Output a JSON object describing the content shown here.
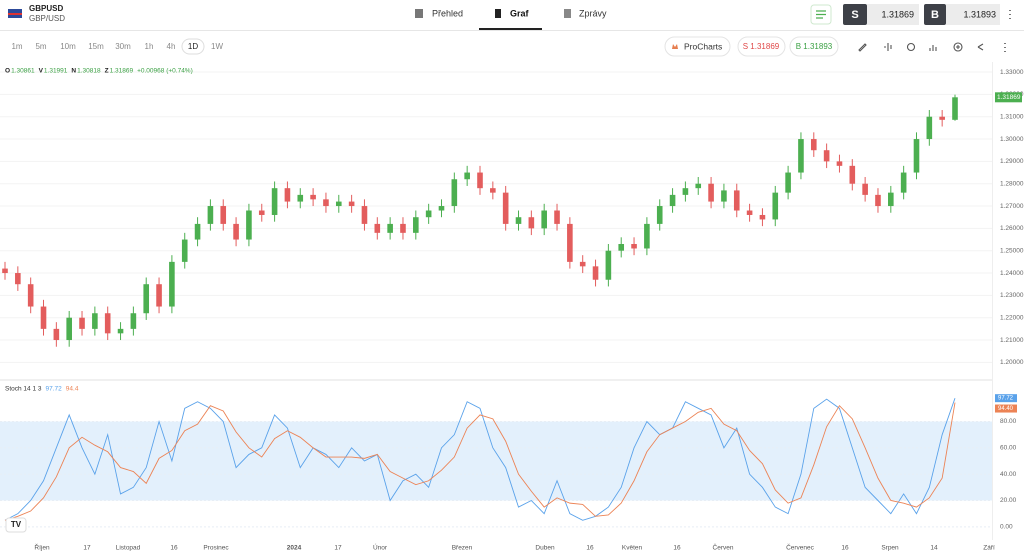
{
  "header": {
    "symbol": "GBPUSD",
    "pair": "GBP/USD",
    "tabs": [
      "Přehled",
      "Graf",
      "Zprávy"
    ],
    "sell_label": "S",
    "sell_price": "1.31869",
    "buy_label": "B",
    "buy_price": "1.31893"
  },
  "toolbar": {
    "timeframes": [
      "1m",
      "5m",
      "10m",
      "15m",
      "30m",
      "1h",
      "4h",
      "1D",
      "1W"
    ],
    "procharts": "ProCharts",
    "sell": "S 1.31869",
    "buy": "B 1.31893"
  },
  "chart_data": {
    "type": "candlestick",
    "ohlc_labels": [
      "O",
      "V",
      "N",
      "Z"
    ],
    "change": "+0.00968 (+0.74%)",
    "up_color": "#4caf50",
    "down_color": "#e35d5d",
    "grid": true,
    "open": [
      1.242,
      1.24,
      1.235,
      1.225,
      1.215,
      1.21,
      1.22,
      1.215,
      1.222,
      1.213,
      1.215,
      1.222,
      1.235,
      1.225,
      1.245,
      1.255,
      1.262,
      1.27,
      1.262,
      1.255,
      1.268,
      1.266,
      1.278,
      1.272,
      1.275,
      1.273,
      1.27,
      1.272,
      1.27,
      1.262,
      1.258,
      1.262,
      1.258,
      1.265,
      1.268,
      1.27,
      1.282,
      1.285,
      1.278,
      1.276,
      1.262,
      1.265,
      1.26,
      1.268,
      1.262,
      1.245,
      1.243,
      1.237,
      1.25,
      1.253,
      1.251,
      1.262,
      1.27,
      1.275,
      1.278,
      1.28,
      1.272,
      1.277,
      1.268,
      1.266,
      1.264,
      1.276,
      1.285,
      1.3,
      1.295,
      1.29,
      1.288,
      1.28,
      1.275,
      1.27,
      1.276,
      1.285,
      1.3,
      1.31,
      1.30861
    ],
    "high": [
      1.245,
      1.243,
      1.238,
      1.228,
      1.218,
      1.223,
      1.223,
      1.225,
      1.225,
      1.218,
      1.225,
      1.238,
      1.238,
      1.248,
      1.258,
      1.265,
      1.273,
      1.273,
      1.265,
      1.271,
      1.271,
      1.281,
      1.281,
      1.278,
      1.278,
      1.276,
      1.275,
      1.275,
      1.273,
      1.265,
      1.265,
      1.265,
      1.268,
      1.271,
      1.273,
      1.285,
      1.288,
      1.288,
      1.281,
      1.279,
      1.268,
      1.268,
      1.271,
      1.271,
      1.265,
      1.248,
      1.246,
      1.253,
      1.256,
      1.256,
      1.265,
      1.273,
      1.278,
      1.281,
      1.283,
      1.283,
      1.28,
      1.28,
      1.271,
      1.269,
      1.279,
      1.288,
      1.303,
      1.303,
      1.298,
      1.293,
      1.291,
      1.283,
      1.278,
      1.279,
      1.288,
      1.303,
      1.313,
      1.313,
      1.31991
    ],
    "low": [
      1.237,
      1.232,
      1.222,
      1.212,
      1.207,
      1.207,
      1.212,
      1.212,
      1.21,
      1.21,
      1.212,
      1.219,
      1.222,
      1.222,
      1.242,
      1.252,
      1.259,
      1.259,
      1.252,
      1.252,
      1.263,
      1.263,
      1.269,
      1.269,
      1.27,
      1.267,
      1.267,
      1.267,
      1.259,
      1.255,
      1.255,
      1.255,
      1.255,
      1.262,
      1.265,
      1.267,
      1.279,
      1.275,
      1.273,
      1.259,
      1.259,
      1.257,
      1.257,
      1.259,
      1.242,
      1.24,
      1.234,
      1.234,
      1.247,
      1.248,
      1.248,
      1.259,
      1.267,
      1.272,
      1.275,
      1.269,
      1.269,
      1.265,
      1.263,
      1.261,
      1.261,
      1.273,
      1.282,
      1.292,
      1.287,
      1.285,
      1.277,
      1.272,
      1.267,
      1.267,
      1.273,
      1.282,
      1.297,
      1.30561,
      1.30818
    ],
    "close": [
      1.24,
      1.235,
      1.225,
      1.215,
      1.21,
      1.22,
      1.215,
      1.222,
      1.213,
      1.215,
      1.222,
      1.235,
      1.225,
      1.245,
      1.255,
      1.262,
      1.27,
      1.262,
      1.255,
      1.268,
      1.266,
      1.278,
      1.272,
      1.275,
      1.273,
      1.27,
      1.272,
      1.27,
      1.262,
      1.258,
      1.262,
      1.258,
      1.265,
      1.268,
      1.27,
      1.282,
      1.285,
      1.278,
      1.276,
      1.262,
      1.265,
      1.26,
      1.268,
      1.262,
      1.245,
      1.243,
      1.237,
      1.25,
      1.253,
      1.251,
      1.262,
      1.27,
      1.275,
      1.278,
      1.28,
      1.272,
      1.277,
      1.268,
      1.266,
      1.264,
      1.276,
      1.285,
      1.3,
      1.295,
      1.29,
      1.288,
      1.28,
      1.275,
      1.27,
      1.276,
      1.285,
      1.3,
      1.31,
      1.30861,
      1.31869
    ],
    "ylim": [
      1.193,
      1.3345
    ],
    "yticks": [
      {
        "value": 1.2,
        "label": "1.20000"
      },
      {
        "value": 1.21,
        "label": "1.21000"
      },
      {
        "value": 1.22,
        "label": "1.22000"
      },
      {
        "value": 1.23,
        "label": "1.23000"
      },
      {
        "value": 1.24,
        "label": "1.24000"
      },
      {
        "value": 1.25,
        "label": "1.25000"
      },
      {
        "value": 1.26,
        "label": "1.26000"
      },
      {
        "value": 1.27,
        "label": "1.27000"
      },
      {
        "value": 1.28,
        "label": "1.28000"
      },
      {
        "value": 1.29,
        "label": "1.29000"
      },
      {
        "value": 1.3,
        "label": "1.30000"
      },
      {
        "value": 1.31,
        "label": "1.31000"
      },
      {
        "value": 1.32,
        "label": "1.32000"
      },
      {
        "value": 1.33,
        "label": "1.33000"
      }
    ],
    "x_labels": [
      "Říjen",
      "17",
      "Listopad",
      "16",
      "Prosinec",
      "2024",
      "17",
      "Únor",
      "Březen",
      "Duben",
      "16",
      "Květen",
      "16",
      "Červen",
      "Červenec",
      "16",
      "Srpen",
      "14",
      "Září"
    ],
    "stoch": {
      "title": "Stoch 14 1 3",
      "ylim": [
        -10,
        110
      ],
      "band": [
        20,
        80
      ],
      "band_color": "#e3f0fc",
      "yticks": [
        {
          "value": 0,
          "label": "0.00"
        },
        {
          "value": 20,
          "label": "20.00"
        },
        {
          "value": 40,
          "label": "40.00"
        },
        {
          "value": 60,
          "label": "60.00"
        },
        {
          "value": 80,
          "label": "80.00"
        }
      ],
      "series": [
        {
          "color": "#5aa2ea",
          "last_label": "97.72",
          "values": [
            5,
            10,
            20,
            35,
            60,
            85,
            60,
            40,
            70,
            25,
            30,
            45,
            80,
            50,
            90,
            95,
            90,
            80,
            45,
            55,
            60,
            85,
            75,
            45,
            60,
            55,
            45,
            60,
            50,
            55,
            20,
            35,
            40,
            30,
            60,
            70,
            95,
            90,
            60,
            45,
            15,
            20,
            10,
            35,
            10,
            5,
            8,
            15,
            30,
            60,
            80,
            70,
            75,
            95,
            90,
            85,
            60,
            75,
            40,
            30,
            15,
            10,
            40,
            90,
            97,
            90,
            60,
            30,
            20,
            10,
            25,
            10,
            30,
            70,
            97.72
          ]
        },
        {
          "color": "#ec8355",
          "last_label": "94.40",
          "values": [
            5,
            8,
            12,
            22,
            38,
            60,
            68,
            62,
            57,
            45,
            42,
            33,
            52,
            58,
            73,
            78,
            92,
            88,
            72,
            60,
            53,
            67,
            73,
            68,
            60,
            53,
            53,
            53,
            52,
            55,
            42,
            37,
            32,
            35,
            43,
            53,
            75,
            85,
            82,
            65,
            40,
            27,
            15,
            22,
            18,
            17,
            8,
            9,
            18,
            35,
            57,
            70,
            75,
            80,
            87,
            90,
            78,
            73,
            58,
            48,
            28,
            18,
            22,
            47,
            76,
            92,
            82,
            60,
            37,
            20,
            18,
            15,
            22,
            37,
            94.4
          ]
        }
      ]
    }
  }
}
